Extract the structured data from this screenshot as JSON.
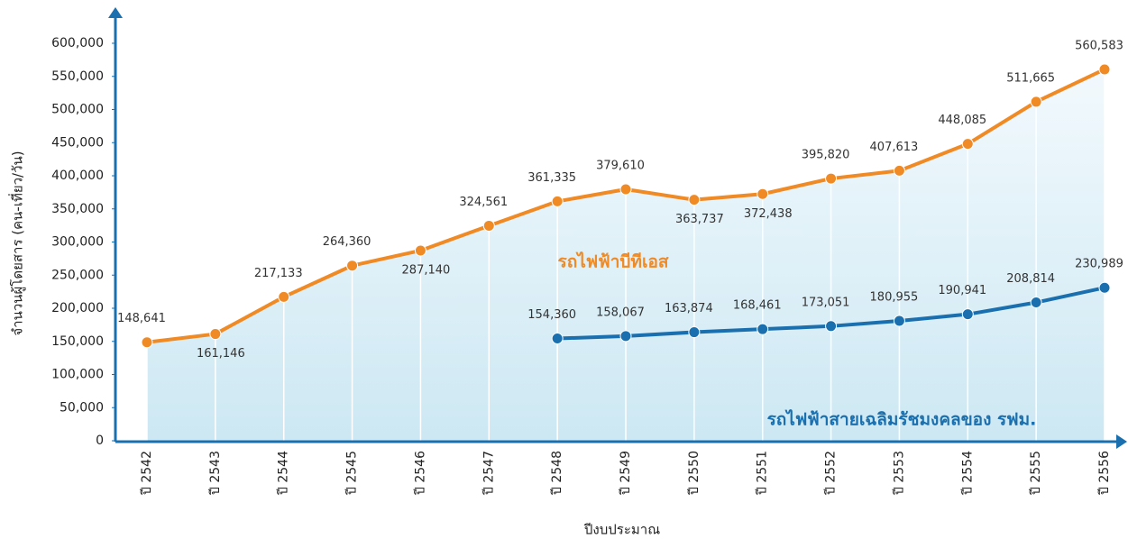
{
  "chart_data": {
    "type": "line",
    "categories": [
      "ปี 2542",
      "ปี 2543",
      "ปี 2544",
      "ปี 2545",
      "ปี 2546",
      "ปี 2547",
      "ปี 2548",
      "ปี 2549",
      "ปี 2550",
      "ปี 2551",
      "ปี 2552",
      "ปี 2553",
      "ปี 2554",
      "ปี 2555",
      "ปี 2556"
    ],
    "series": [
      {
        "name": "รถไฟฟ้าบีทีเอส",
        "color": "#f08a24",
        "values": [
          148641,
          161146,
          217133,
          264360,
          287140,
          324561,
          361335,
          379610,
          363737,
          372438,
          395820,
          407613,
          448085,
          511665,
          560583
        ],
        "value_labels": [
          "148,641",
          "161,146",
          "217,133",
          "264,360",
          "287,140",
          "324,561",
          "361,335",
          "379,610",
          "363,737",
          "372,438",
          "395,820",
          "407,613",
          "448,085",
          "511,665",
          "560,583"
        ]
      },
      {
        "name": "รถไฟฟ้าสายเฉลิมรัชมงคลของ รฟม.",
        "color": "#1a6faf",
        "values": [
          null,
          null,
          null,
          null,
          null,
          null,
          154360,
          158067,
          163874,
          168461,
          173051,
          180955,
          190941,
          208814,
          230989
        ],
        "value_labels": [
          null,
          null,
          null,
          null,
          null,
          null,
          "154,360",
          "158,067",
          "163,874",
          "168,461",
          "173,051",
          "180,955",
          "190,941",
          "208,814",
          "230,989"
        ]
      }
    ],
    "ylim": [
      0,
      600000
    ],
    "yticks": [
      0,
      {
        "value": 50000,
        "label": "50,000"
      },
      {
        "value": 100000,
        "label": "100,000"
      },
      {
        "value": 150000,
        "label": "150,000"
      },
      {
        "value": 200000,
        "label": "200,000"
      },
      {
        "value": 250000,
        "label": "250,000"
      },
      {
        "value": 300000,
        "label": "300,000"
      },
      {
        "value": 350000,
        "label": "350,000"
      },
      {
        "value": 400000,
        "label": "400,000"
      },
      {
        "value": 450000,
        "label": "450,000"
      },
      {
        "value": 500000,
        "label": "500,000"
      },
      {
        "value": 550000,
        "label": "550,000"
      },
      {
        "value": 600000,
        "label": "600,000"
      }
    ],
    "y_label": "จำนวนผู้โดยสาร (คน-เที่ยว/วัน)",
    "x_label": "ปีงบประมาณ"
  }
}
